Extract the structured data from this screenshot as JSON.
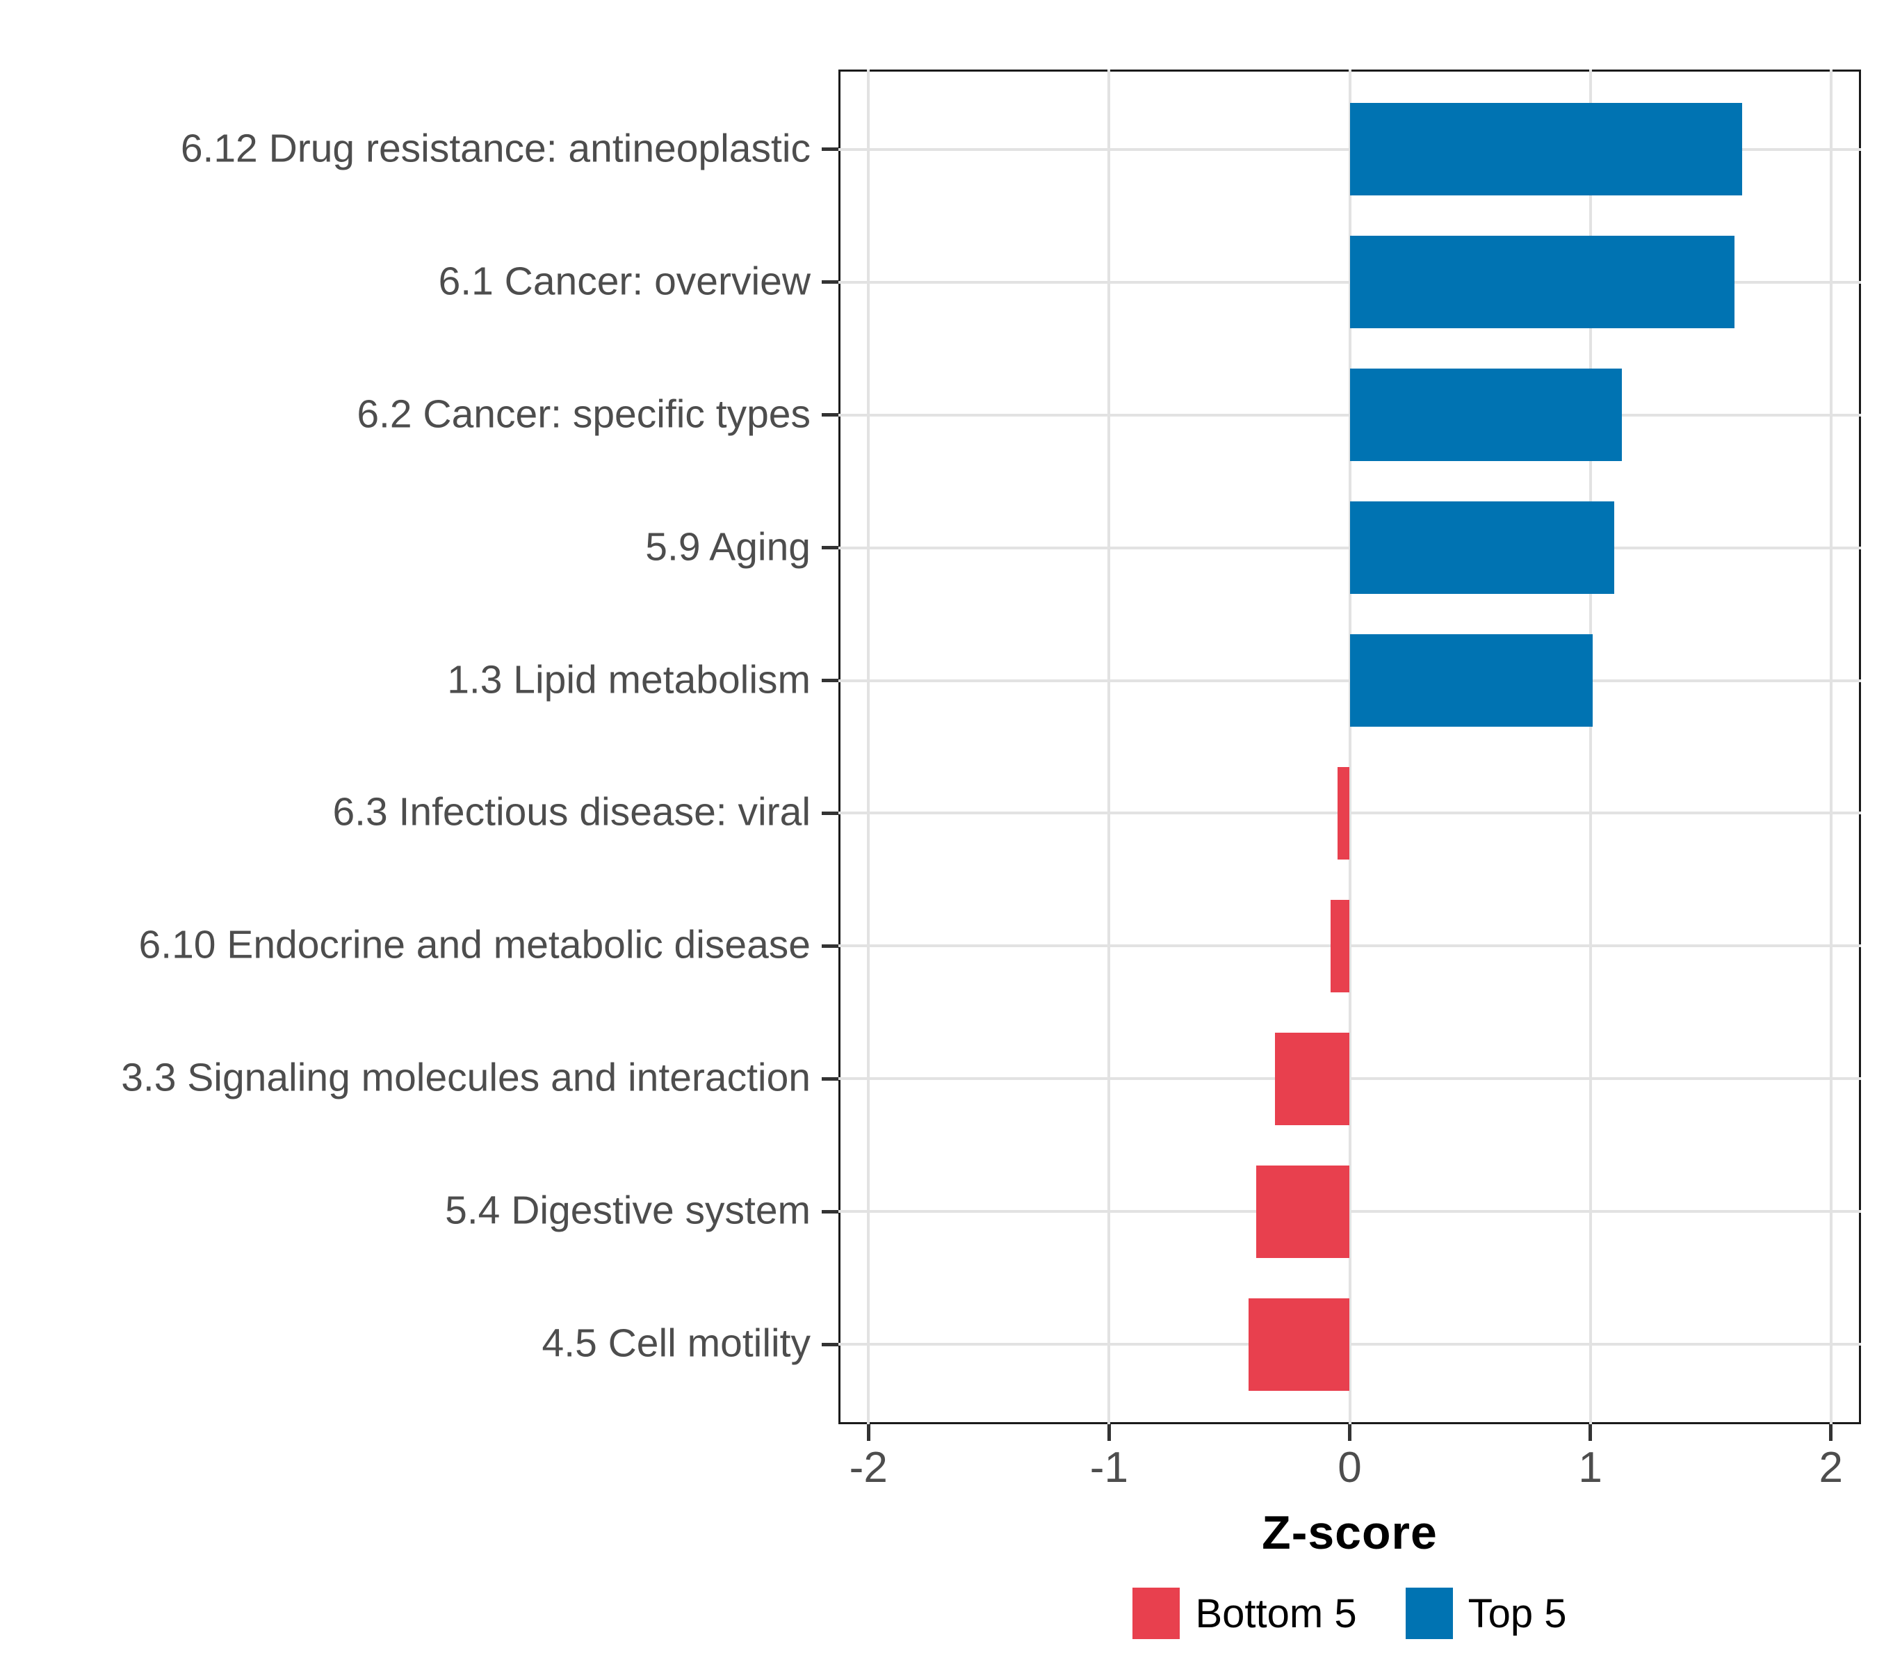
{
  "figure": {
    "background": "#ffffff"
  },
  "chart_data": {
    "type": "bar",
    "orientation": "horizontal",
    "title": "",
    "xlabel": "Z-score",
    "ylabel": "",
    "xlim": [
      -2.125,
      2.125
    ],
    "x_ticks": [
      -2,
      -1,
      0,
      1,
      2
    ],
    "x_tick_labels": [
      "-2",
      "-1",
      "0",
      "1",
      "2"
    ],
    "grid": "major-on",
    "legend_position": "bottom",
    "categories": [
      "6.12 Drug resistance: antineoplastic",
      "6.1 Cancer: overview",
      "6.2 Cancer: specific types",
      "5.9 Aging",
      "1.3 Lipid metabolism",
      "6.3 Infectious disease: viral",
      "6.10 Endocrine and metabolic disease",
      "3.3 Signaling molecules and interaction",
      "5.4 Digestive system",
      "4.5 Cell motility"
    ],
    "values": [
      1.63,
      1.6,
      1.13,
      1.1,
      1.01,
      -0.05,
      -0.08,
      -0.31,
      -0.39,
      -0.42
    ],
    "groups": [
      "Top 5",
      "Top 5",
      "Top 5",
      "Top 5",
      "Top 5",
      "Bottom 5",
      "Bottom 5",
      "Bottom 5",
      "Bottom 5",
      "Bottom 5"
    ]
  },
  "legend": {
    "items": [
      {
        "label": "Bottom 5",
        "color": "#E8404E"
      },
      {
        "label": "Top 5",
        "color": "#0073B2"
      }
    ]
  },
  "colors": {
    "top5": "#0073B2",
    "bottom5": "#E8404E",
    "grid": "#e2e2e2",
    "panel_border": "#1a1a1a",
    "tick": "#333333",
    "axis_text": "#4d4d4d",
    "axis_title": "#000000"
  }
}
